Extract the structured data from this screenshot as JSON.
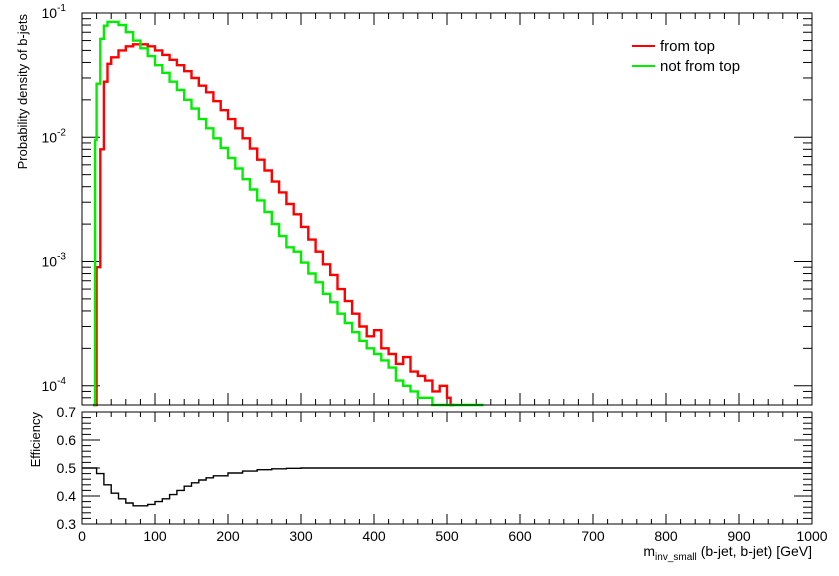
{
  "chart_data": [
    {
      "type": "line",
      "step": true,
      "ylabel": "Probability density of b-jets",
      "xlim": [
        0,
        1000
      ],
      "ylim": [
        7e-05,
        0.1
      ],
      "yscale": "log",
      "yticks": [
        {
          "value": 0.0001,
          "base": "10",
          "exp": "-4"
        },
        {
          "value": 0.001,
          "base": "10",
          "exp": "-3"
        },
        {
          "value": 0.01,
          "base": "10",
          "exp": "-2"
        },
        {
          "value": 0.1,
          "base": "10",
          "exp": "-1"
        }
      ],
      "legend": {
        "placement": "top-right"
      },
      "series": [
        {
          "name": "from top",
          "color": "#ff0000",
          "points": [
            [
              15,
              2e-05
            ],
            [
              20,
              0.0009
            ],
            [
              25,
              0.008
            ],
            [
              30,
              0.028
            ],
            [
              35,
              0.039
            ],
            [
              40,
              0.044
            ],
            [
              50,
              0.05
            ],
            [
              60,
              0.054
            ],
            [
              70,
              0.056
            ],
            [
              80,
              0.056
            ],
            [
              90,
              0.054
            ],
            [
              100,
              0.05
            ],
            [
              110,
              0.046
            ],
            [
              120,
              0.042
            ],
            [
              130,
              0.038
            ],
            [
              140,
              0.034
            ],
            [
              150,
              0.03
            ],
            [
              160,
              0.026
            ],
            [
              170,
              0.023
            ],
            [
              180,
              0.0195
            ],
            [
              190,
              0.0165
            ],
            [
              200,
              0.014
            ],
            [
              210,
              0.0118
            ],
            [
              220,
              0.0098
            ],
            [
              230,
              0.0081
            ],
            [
              240,
              0.0066
            ],
            [
              250,
              0.0054
            ],
            [
              260,
              0.0044
            ],
            [
              270,
              0.0036
            ],
            [
              280,
              0.0029
            ],
            [
              290,
              0.0024
            ],
            [
              300,
              0.0019
            ],
            [
              310,
              0.0015
            ],
            [
              320,
              0.0012
            ],
            [
              330,
              0.00095
            ],
            [
              340,
              0.00078
            ],
            [
              350,
              0.0006
            ],
            [
              360,
              0.00048
            ],
            [
              370,
              0.00038
            ],
            [
              380,
              0.0003
            ],
            [
              390,
              0.00025
            ],
            [
              400,
              0.00028
            ],
            [
              410,
              0.0002
            ],
            [
              420,
              0.00018
            ],
            [
              430,
              0.00015
            ],
            [
              440,
              0.00017
            ],
            [
              450,
              0.00013
            ],
            [
              460,
              0.00012
            ],
            [
              470,
              0.00011
            ],
            [
              480,
              9e-05
            ],
            [
              490,
              0.0001
            ],
            [
              500,
              8e-05
            ],
            [
              505,
              2e-05
            ]
          ]
        },
        {
          "name": "not from top",
          "color": "#00ee00",
          "points": [
            [
              15,
              2e-05
            ],
            [
              18,
              0.0095
            ],
            [
              20,
              0.027
            ],
            [
              25,
              0.062
            ],
            [
              30,
              0.079
            ],
            [
              35,
              0.085
            ],
            [
              40,
              0.085
            ],
            [
              50,
              0.08
            ],
            [
              60,
              0.07
            ],
            [
              70,
              0.06
            ],
            [
              80,
              0.052
            ],
            [
              90,
              0.045
            ],
            [
              100,
              0.038
            ],
            [
              110,
              0.033
            ],
            [
              120,
              0.028
            ],
            [
              130,
              0.024
            ],
            [
              140,
              0.02
            ],
            [
              150,
              0.017
            ],
            [
              160,
              0.014
            ],
            [
              170,
              0.0118
            ],
            [
              180,
              0.0098
            ],
            [
              190,
              0.0082
            ],
            [
              200,
              0.0068
            ],
            [
              210,
              0.0056
            ],
            [
              220,
              0.0046
            ],
            [
              230,
              0.0038
            ],
            [
              240,
              0.0031
            ],
            [
              250,
              0.0025
            ],
            [
              260,
              0.002
            ],
            [
              270,
              0.0016
            ],
            [
              280,
              0.0013
            ],
            [
              290,
              0.0012
            ],
            [
              300,
              0.00098
            ],
            [
              310,
              0.0008
            ],
            [
              320,
              0.00068
            ],
            [
              330,
              0.00055
            ],
            [
              340,
              0.00047
            ],
            [
              350,
              0.00038
            ],
            [
              360,
              0.00032
            ],
            [
              370,
              0.00027
            ],
            [
              380,
              0.00023
            ],
            [
              390,
              0.0002
            ],
            [
              400,
              0.00018
            ],
            [
              410,
              0.00016
            ],
            [
              420,
              0.00014
            ],
            [
              430,
              0.00011
            ],
            [
              440,
              0.0001
            ],
            [
              450,
              9e-05
            ],
            [
              460,
              8e-05
            ],
            [
              470,
              8e-05
            ],
            [
              480,
              7e-05
            ],
            [
              490,
              2e-05
            ],
            [
              535,
              2e-05
            ],
            [
              540,
              7e-05
            ],
            [
              545,
              2e-05
            ]
          ]
        }
      ]
    },
    {
      "type": "line",
      "step": true,
      "xlabel_main": "m",
      "xlabel_sub": "inv_small",
      "xlabel_rest": "(b-jet, b-jet) [GeV]",
      "ylabel": "Efficiency",
      "xlim": [
        0,
        1000
      ],
      "ylim": [
        0.3,
        0.7
      ],
      "xticks": [
        "0",
        "100",
        "200",
        "300",
        "400",
        "500",
        "600",
        "700",
        "800",
        "900",
        "1000"
      ],
      "yticks": [
        "0.3",
        "0.4",
        "0.5",
        "0.6",
        "0.7"
      ],
      "series": [
        {
          "color": "#000000",
          "points": [
            [
              0,
              0.5
            ],
            [
              20,
              0.48
            ],
            [
              30,
              0.44
            ],
            [
              40,
              0.41
            ],
            [
              50,
              0.39
            ],
            [
              60,
              0.375
            ],
            [
              70,
              0.365
            ],
            [
              80,
              0.365
            ],
            [
              90,
              0.37
            ],
            [
              100,
              0.38
            ],
            [
              110,
              0.39
            ],
            [
              120,
              0.405
            ],
            [
              130,
              0.42
            ],
            [
              140,
              0.435
            ],
            [
              150,
              0.447
            ],
            [
              160,
              0.457
            ],
            [
              170,
              0.465
            ],
            [
              180,
              0.472
            ],
            [
              200,
              0.482
            ],
            [
              220,
              0.489
            ],
            [
              240,
              0.494
            ],
            [
              260,
              0.497
            ],
            [
              280,
              0.499
            ],
            [
              300,
              0.5
            ],
            [
              400,
              0.5
            ],
            [
              500,
              0.5
            ],
            [
              1000,
              0.5
            ]
          ]
        }
      ]
    }
  ]
}
